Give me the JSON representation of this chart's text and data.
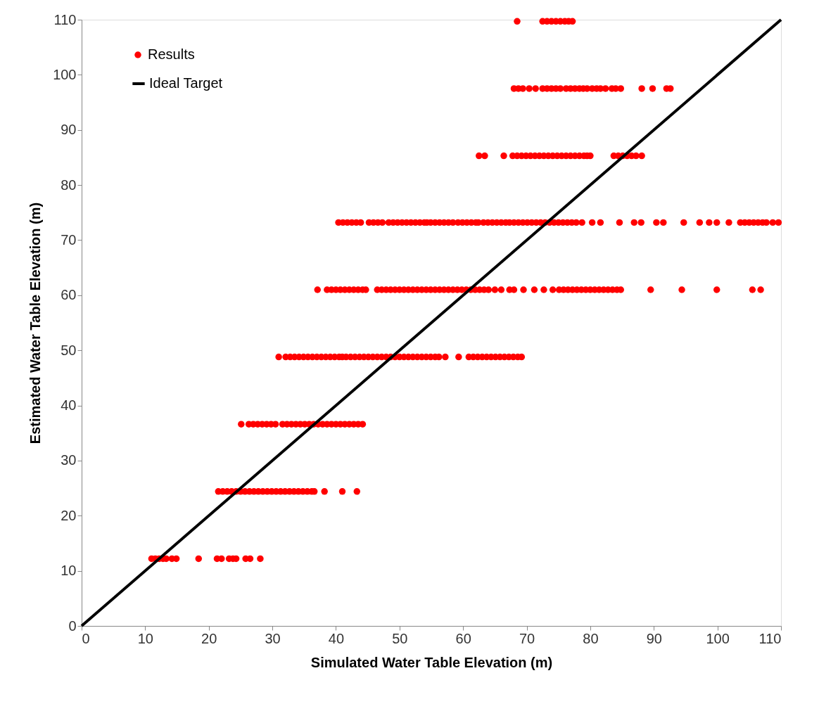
{
  "chart_data": {
    "type": "scatter",
    "xlabel": "Simulated Water Table Elevation (m)",
    "ylabel": "Estimated Water Table Elevation (m)",
    "xlim": [
      0,
      110
    ],
    "ylim": [
      0,
      110
    ],
    "xticks": [
      0,
      10,
      20,
      30,
      40,
      50,
      60,
      70,
      80,
      90,
      100,
      110
    ],
    "yticks": [
      0,
      10,
      20,
      30,
      40,
      50,
      60,
      70,
      80,
      90,
      100,
      110
    ],
    "grid": false,
    "legend": "top left",
    "series": [
      {
        "name": "Results",
        "color": "#ff0000",
        "marker": "circle",
        "x": [
          11,
          11.6,
          12.2,
          12.8,
          13.3,
          14.2,
          14.9,
          18.4,
          21.3,
          22,
          23.2,
          23.8,
          24.3,
          25.8,
          26.5,
          28.1,
          21.5,
          22.2,
          22.9,
          23.6,
          24.3,
          25,
          25.7,
          26.4,
          27.1,
          27.8,
          28.5,
          29.2,
          29.9,
          30.6,
          31.3,
          32,
          32.7,
          33.4,
          34.1,
          34.8,
          35.5,
          36.2,
          36.6,
          38.2,
          41,
          43.3,
          25.1,
          26.3,
          27,
          27.7,
          28.4,
          29.1,
          29.8,
          30.5,
          31.6,
          32.3,
          33,
          33.7,
          34.4,
          35.1,
          35.8,
          36.5,
          37.2,
          37.9,
          38.6,
          39.3,
          40,
          40.7,
          41.4,
          42.1,
          42.8,
          43.5,
          44.2,
          31,
          32.1,
          32.8,
          33.5,
          34.2,
          34.9,
          35.6,
          36.3,
          37,
          37.7,
          38.4,
          39.1,
          39.8,
          40.5,
          41,
          41.6,
          42.3,
          43,
          43.7,
          44.4,
          45.1,
          45.8,
          46.5,
          47.2,
          47.9,
          48.6,
          49.3,
          50,
          50.7,
          51.4,
          52.1,
          52.8,
          53.5,
          54.2,
          54.9,
          55.6,
          56.2,
          57.2,
          59.3,
          60.9,
          61.6,
          62.3,
          63,
          63.7,
          64.4,
          65.1,
          65.8,
          66.5,
          67.2,
          67.9,
          68.6,
          69.2,
          37.1,
          38.6,
          39.3,
          40,
          40.7,
          41.4,
          42.1,
          42.8,
          43.5,
          44.2,
          44.7,
          46.5,
          47.2,
          47.9,
          48.6,
          49.3,
          50,
          50.7,
          51.4,
          52.1,
          52.8,
          53.5,
          54.2,
          54.9,
          55.6,
          56.3,
          57,
          57.7,
          58.4,
          59.1,
          59.8,
          60.5,
          61.2,
          61.9,
          62.6,
          63.3,
          64,
          65,
          66,
          67.3,
          68,
          69.5,
          71.2,
          72.7,
          74.1,
          75.1,
          75.8,
          76.5,
          77.2,
          77.9,
          78.6,
          79.3,
          80,
          80.7,
          81.4,
          82.1,
          82.8,
          83.5,
          84.2,
          84.8,
          89.5,
          94.4,
          99.9,
          105.5,
          106.8,
          40.4,
          41.1,
          41.8,
          42.5,
          43.2,
          43.9,
          45.2,
          45.9,
          46.6,
          47.3,
          48.3,
          49,
          49.7,
          50.4,
          51.1,
          51.8,
          52.5,
          53.2,
          53.9,
          54.3,
          54.9,
          55.6,
          56.3,
          57,
          57.7,
          58.4,
          59.2,
          59.9,
          60.6,
          61.3,
          62,
          62.4,
          63.2,
          63.9,
          64.6,
          65.3,
          66,
          66.7,
          67.3,
          68,
          68.7,
          69.4,
          70.1,
          70.8,
          71.5,
          72.2,
          72.9,
          73.6,
          74.3,
          75,
          75.7,
          76.4,
          77.1,
          77.8,
          78.7,
          80.3,
          81.6,
          84.6,
          86.9,
          88,
          90.4,
          91.5,
          94.7,
          97.2,
          98.7,
          99.9,
          101.8,
          103.6,
          104.3,
          105,
          105.7,
          106.4,
          107.1,
          107.7,
          108.7,
          109.6,
          62.5,
          63.4,
          66.4,
          67.8,
          68.5,
          69.2,
          69.9,
          70.6,
          71.3,
          72,
          72.7,
          73.4,
          74.1,
          74.8,
          75.5,
          76.2,
          76.9,
          77.6,
          78.3,
          79,
          79.5,
          80,
          83.7,
          84.4,
          85.1,
          85.8,
          86.5,
          87.2,
          88.1,
          68,
          68.7,
          69.4,
          70.4,
          71.4,
          72.5,
          73.2,
          73.9,
          74.6,
          75.3,
          76.2,
          76.9,
          77.6,
          78.3,
          78.9,
          79.5,
          80.3,
          81,
          81.6,
          82.4,
          83.4,
          84,
          84.8,
          88.1,
          89.8,
          92,
          92.6,
          68.5,
          72.5,
          73.2,
          73.9,
          74.6,
          75.3,
          76,
          76.6,
          77.2
        ],
        "values": [
          12.2,
          12.2,
          12.2,
          12.2,
          12.2,
          12.2,
          12.2,
          12.2,
          12.2,
          12.2,
          12.2,
          12.2,
          12.2,
          12.2,
          12.2,
          12.2,
          24.4,
          24.4,
          24.4,
          24.4,
          24.4,
          24.4,
          24.4,
          24.4,
          24.4,
          24.4,
          24.4,
          24.4,
          24.4,
          24.4,
          24.4,
          24.4,
          24.4,
          24.4,
          24.4,
          24.4,
          24.4,
          24.4,
          24.4,
          24.4,
          24.4,
          24.4,
          36.6,
          36.6,
          36.6,
          36.6,
          36.6,
          36.6,
          36.6,
          36.6,
          36.6,
          36.6,
          36.6,
          36.6,
          36.6,
          36.6,
          36.6,
          36.6,
          36.6,
          36.6,
          36.6,
          36.6,
          36.6,
          36.6,
          36.6,
          36.6,
          36.6,
          36.6,
          36.6,
          48.8,
          48.8,
          48.8,
          48.8,
          48.8,
          48.8,
          48.8,
          48.8,
          48.8,
          48.8,
          48.8,
          48.8,
          48.8,
          48.8,
          48.8,
          48.8,
          48.8,
          48.8,
          48.8,
          48.8,
          48.8,
          48.8,
          48.8,
          48.8,
          48.8,
          48.8,
          48.8,
          48.8,
          48.8,
          48.8,
          48.8,
          48.8,
          48.8,
          48.8,
          48.8,
          48.8,
          48.8,
          48.8,
          48.8,
          48.8,
          48.8,
          48.8,
          48.8,
          48.8,
          48.8,
          48.8,
          48.8,
          48.8,
          48.8,
          48.8,
          48.8,
          48.8,
          61,
          61,
          61,
          61,
          61,
          61,
          61,
          61,
          61,
          61,
          61,
          61,
          61,
          61,
          61,
          61,
          61,
          61,
          61,
          61,
          61,
          61,
          61,
          61,
          61,
          61,
          61,
          61,
          61,
          61,
          61,
          61,
          61,
          61,
          61,
          61,
          61,
          61,
          61,
          61,
          61,
          61,
          61,
          61,
          61,
          61,
          61,
          61,
          61,
          61,
          61,
          61,
          61,
          61,
          61,
          61,
          61,
          61,
          61,
          61,
          61,
          61,
          61,
          61,
          61,
          73.2,
          73.2,
          73.2,
          73.2,
          73.2,
          73.2,
          73.2,
          73.2,
          73.2,
          73.2,
          73.2,
          73.2,
          73.2,
          73.2,
          73.2,
          73.2,
          73.2,
          73.2,
          73.2,
          73.2,
          73.2,
          73.2,
          73.2,
          73.2,
          73.2,
          73.2,
          73.2,
          73.2,
          73.2,
          73.2,
          73.2,
          73.2,
          73.2,
          73.2,
          73.2,
          73.2,
          73.2,
          73.2,
          73.2,
          73.2,
          73.2,
          73.2,
          73.2,
          73.2,
          73.2,
          73.2,
          73.2,
          73.2,
          73.2,
          73.2,
          73.2,
          73.2,
          73.2,
          73.2,
          73.2,
          73.2,
          73.2,
          73.2,
          73.2,
          73.2,
          73.2,
          73.2,
          73.2,
          73.2,
          73.2,
          73.2,
          73.2,
          73.2,
          73.2,
          73.2,
          73.2,
          73.2,
          73.2,
          73.2,
          73.2,
          73.2,
          85.3,
          85.3,
          85.3,
          85.3,
          85.3,
          85.3,
          85.3,
          85.3,
          85.3,
          85.3,
          85.3,
          85.3,
          85.3,
          85.3,
          85.3,
          85.3,
          85.3,
          85.3,
          85.3,
          85.3,
          85.3,
          85.3,
          85.3,
          85.3,
          85.3,
          85.3,
          85.3,
          85.3,
          85.3,
          97.5,
          97.5,
          97.5,
          97.5,
          97.5,
          97.5,
          97.5,
          97.5,
          97.5,
          97.5,
          97.5,
          97.5,
          97.5,
          97.5,
          97.5,
          97.5,
          97.5,
          97.5,
          97.5,
          97.5,
          97.5,
          97.5,
          97.5,
          97.5,
          97.5,
          97.5,
          97.5,
          109.7,
          109.7,
          109.7,
          109.7,
          109.7,
          109.7,
          109.7,
          109.7,
          109.7
        ]
      },
      {
        "name": "Ideal Target",
        "type": "line",
        "color": "#000000",
        "line_style": "solid",
        "x": [
          0,
          110
        ],
        "values": [
          0,
          110
        ]
      }
    ]
  }
}
